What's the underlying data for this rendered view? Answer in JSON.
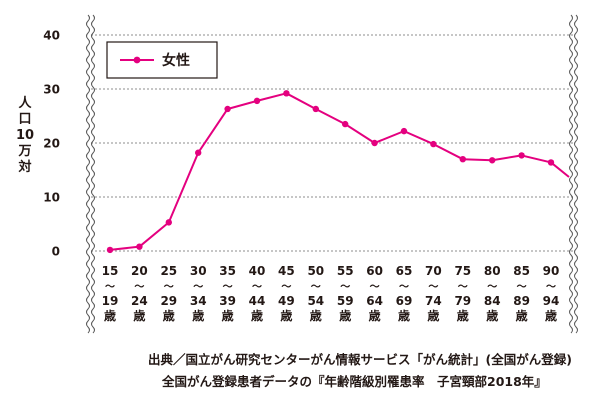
{
  "chart_data": {
    "type": "line",
    "ylabel": [
      "人",
      "口",
      "10",
      "万",
      "対"
    ],
    "ylim": [
      0,
      40
    ],
    "yticks": [
      0,
      10,
      20,
      30,
      40
    ],
    "grid": true,
    "legend_position": "top-left",
    "categories": [
      [
        "15",
        "19"
      ],
      [
        "20",
        "24"
      ],
      [
        "25",
        "29"
      ],
      [
        "30",
        "34"
      ],
      [
        "35",
        "39"
      ],
      [
        "40",
        "44"
      ],
      [
        "45",
        "49"
      ],
      [
        "50",
        "54"
      ],
      [
        "55",
        "59"
      ],
      [
        "60",
        "64"
      ],
      [
        "65",
        "69"
      ],
      [
        "70",
        "74"
      ],
      [
        "75",
        "79"
      ],
      [
        "80",
        "84"
      ],
      [
        "85",
        "89"
      ],
      [
        "90",
        "94"
      ]
    ],
    "category_range_mark": "〜",
    "category_suffix": "歳",
    "series": [
      {
        "name": "女性",
        "color": "#e4007f",
        "values": [
          0.2,
          0.8,
          5.3,
          18.2,
          26.3,
          27.8,
          29.2,
          26.3,
          23.5,
          20.0,
          22.2,
          19.8,
          17.0,
          16.8,
          17.7,
          16.4
        ],
        "tail_value": 13.7
      }
    ]
  },
  "source": {
    "line1": "出典／国立がん研究センターがん情報サービス「がん統計」(全国がん登録)",
    "line2": "全国がん登録患者データの『年齢階級別罹患率　子宮頸部2018年』"
  }
}
